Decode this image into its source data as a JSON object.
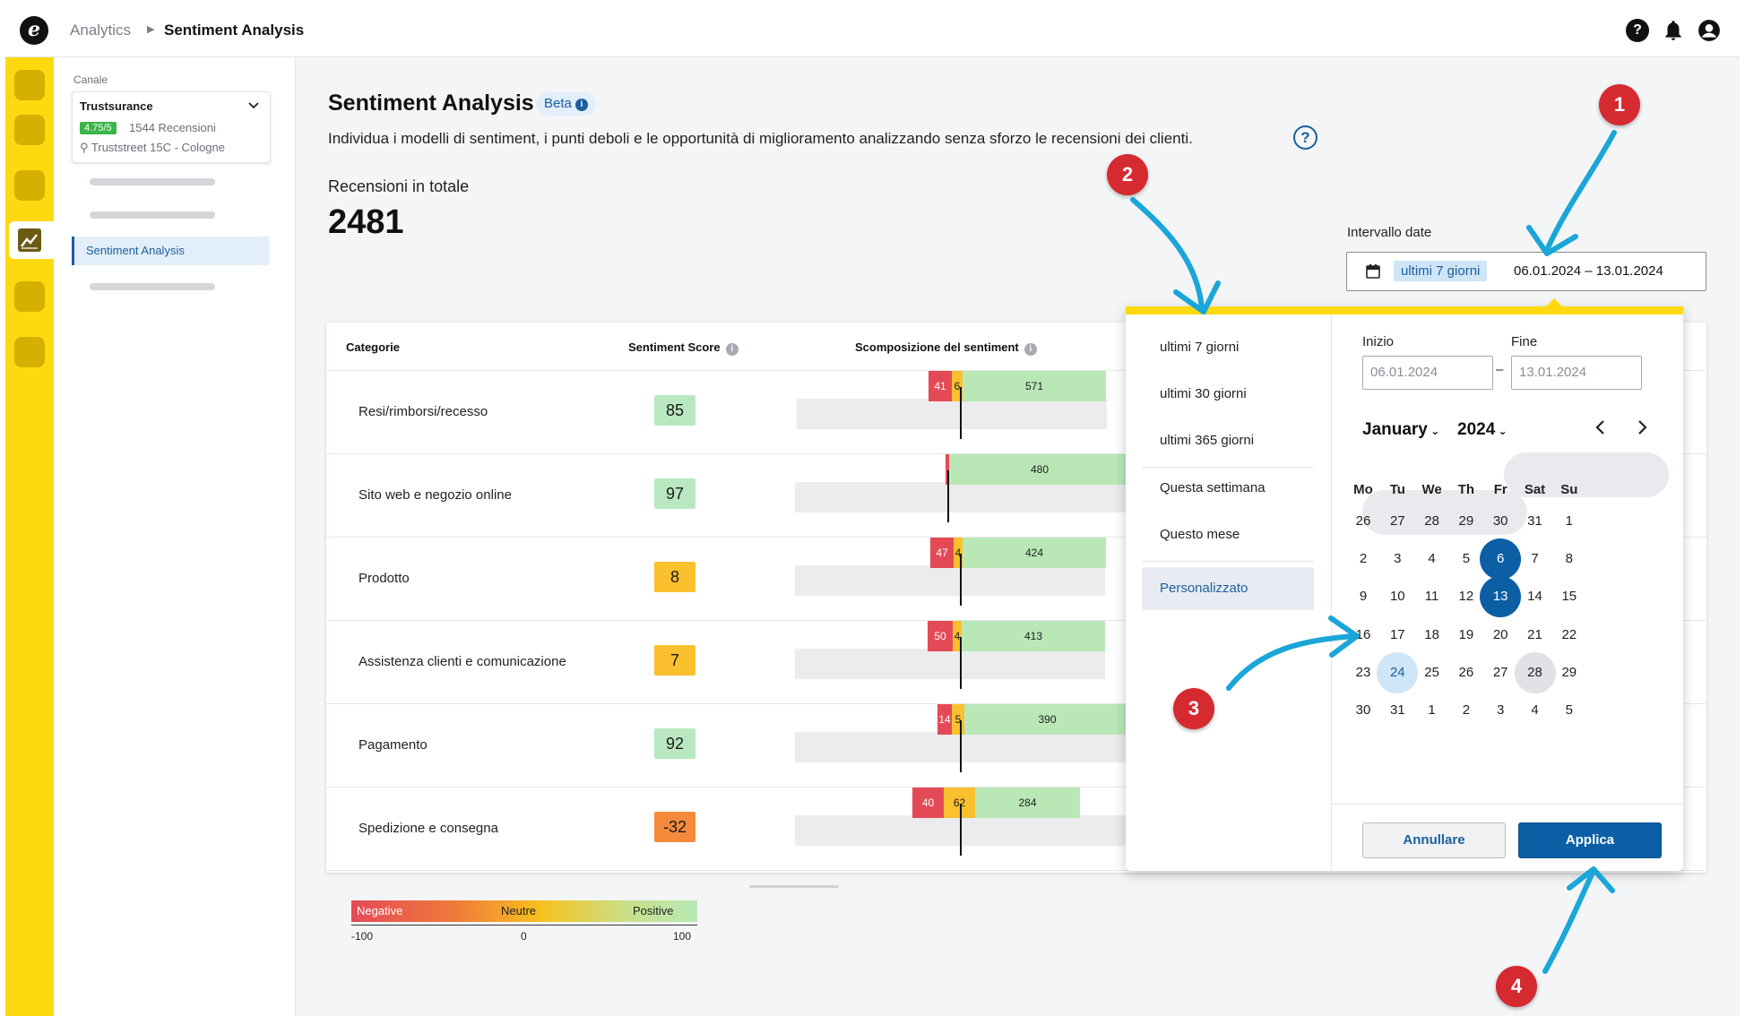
{
  "breadcrumb": {
    "parent": "Analytics",
    "current": "Sentiment Analysis"
  },
  "header_icons": [
    "help-icon",
    "bell-icon",
    "user-icon"
  ],
  "sidebar": {
    "channel_label": "Canale",
    "channel": {
      "name": "Trustsurance",
      "rating": "4.75/5",
      "reviews": "1544 Recensioni",
      "address": "Truststreet 15C - Cologne"
    },
    "active_item": "Sentiment Analysis"
  },
  "page": {
    "title": "Sentiment Analysis",
    "badge": "Beta",
    "subtitle": "Individua i modelli di sentiment, i punti deboli e le opportunità di miglioramento analizzando senza sforzo le recensioni dei clienti.",
    "total_label": "Recensioni in totale",
    "total_value": "2481"
  },
  "table": {
    "headers": {
      "category": "Categorie",
      "score": "Sentiment Score",
      "breakdown": "Scomposizione del sentiment"
    },
    "rows": [
      {
        "category": "Resi/rimborsi/recesso",
        "score": "85",
        "score_color": "#b9e8c0",
        "negative": "41",
        "neutral": "6",
        "positive": "571"
      },
      {
        "category": "Sito web e negozio online",
        "score": "97",
        "score_color": "#b9e8c0",
        "negative": "",
        "neutral": "",
        "positive": "480"
      },
      {
        "category": "Prodotto",
        "score": "8",
        "score_color": "#fbc02d",
        "negative": "47",
        "neutral": "4",
        "positive": "424"
      },
      {
        "category": "Assistenza clienti e comunicazione",
        "score": "7",
        "score_color": "#fbc02d",
        "negative": "50",
        "neutral": "4",
        "positive": "413"
      },
      {
        "category": "Pagamento",
        "score": "92",
        "score_color": "#b9e8c0",
        "negative": "14",
        "neutral": "5",
        "positive": "390"
      },
      {
        "category": "Spedizione e consegna",
        "score": "-32",
        "score_color": "#f58a3c",
        "negative": "40",
        "neutral": "62",
        "positive": "284"
      }
    ]
  },
  "legend": {
    "negative": "Negative",
    "neutral": "Neutre",
    "positive": "Positive",
    "min": "-100",
    "mid": "0",
    "max": "100"
  },
  "date_interval": {
    "label": "Intervallo date",
    "chip": "ultimi 7 giorni",
    "start": "06.01.2024",
    "separator": "–",
    "end": "13.01.2024"
  },
  "picker": {
    "presets": [
      "ultimi 7 giorni",
      "ultimi 30 giorni",
      "ultimi 365 giorni",
      "Questa settimana",
      "Questo mese",
      "Personalizzato"
    ],
    "start_label": "Inizio",
    "end_label": "Fine",
    "start_value": "06.01.2024",
    "end_value": "13.01.2024",
    "range_dash": "–",
    "month": "January",
    "year": "2024",
    "weekdays": [
      "Mo",
      "Tu",
      "We",
      "Th",
      "Fr",
      "Sat",
      "Su"
    ],
    "weeks": [
      [
        "26",
        "27",
        "28",
        "29",
        "30",
        "31",
        "1"
      ],
      [
        "2",
        "3",
        "4",
        "5",
        "6",
        "7",
        "8"
      ],
      [
        "9",
        "10",
        "11",
        "12",
        "13",
        "14",
        "15"
      ],
      [
        "16",
        "17",
        "18",
        "19",
        "20",
        "21",
        "22"
      ],
      [
        "23",
        "24",
        "25",
        "26",
        "27",
        "28",
        "29"
      ],
      [
        "30",
        "31",
        "1",
        "2",
        "3",
        "4",
        "5"
      ]
    ],
    "selected_start": "6",
    "selected_end": "13",
    "today": "24",
    "cancel": "Annullare",
    "apply": "Applica"
  },
  "annotations": [
    "1",
    "2",
    "3",
    "4"
  ],
  "colors": {
    "accent": "#0c5fa5",
    "rail": "#ffd90f",
    "negative": "#e44a56",
    "neutral": "#fbc02d",
    "positive": "#b9e8b6",
    "badge": "#d42a30",
    "arrow": "#1aa6d8"
  }
}
